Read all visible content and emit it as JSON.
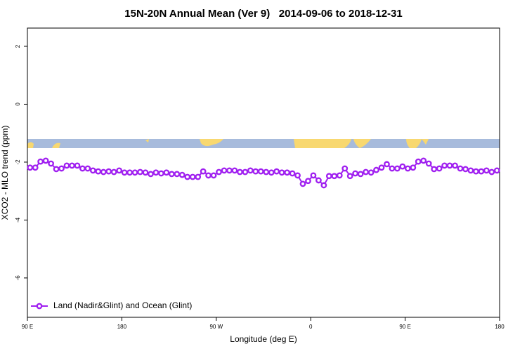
{
  "chart_data": {
    "type": "line",
    "title": "15N-20N Annual Mean (Ver 9)   2014-09-06 to 2018-12-31",
    "xlabel": "Longitude (deg E)",
    "ylabel": "XCO2 - MLO trend (ppm)",
    "x": [
      92.5,
      97.5,
      102.5,
      107.5,
      112.5,
      117.5,
      122.5,
      127.5,
      132.5,
      137.5,
      142.5,
      147.5,
      152.5,
      157.5,
      162.5,
      167.5,
      172.5,
      177.5,
      182.5,
      187.5,
      192.5,
      197.5,
      202.5,
      207.5,
      212.5,
      217.5,
      222.5,
      227.5,
      232.5,
      237.5,
      242.5,
      247.5,
      252.5,
      257.5,
      262.5,
      267.5,
      272.5,
      277.5,
      282.5,
      287.5,
      292.5,
      297.5,
      302.5,
      307.5,
      312.5,
      317.5,
      322.5,
      327.5,
      332.5,
      337.5,
      342.5,
      347.5,
      352.5,
      357.5,
      362.5,
      367.5,
      372.5,
      377.5,
      382.5,
      387.5,
      392.5,
      397.5,
      402.5,
      407.5,
      412.5,
      417.5,
      422.5,
      427.5,
      432.5,
      437.5,
      442.5,
      447.5,
      452.5,
      457.5,
      462.5,
      467.5,
      472.5,
      477.5,
      482.5,
      487.5,
      492.5,
      497.5,
      502.5,
      507.5,
      512.5,
      517.5,
      522.5,
      527.5,
      532.5,
      537.5
    ],
    "series": [
      {
        "name": "Land (Nadir&Glint) and Ocean (Glint)",
        "color": "#a020f0",
        "values": [
          -2.19,
          -2.19,
          -1.98,
          -1.95,
          -2.05,
          -2.24,
          -2.22,
          -2.12,
          -2.12,
          -2.12,
          -2.22,
          -2.22,
          -2.29,
          -2.32,
          -2.34,
          -2.32,
          -2.34,
          -2.29,
          -2.36,
          -2.36,
          -2.36,
          -2.34,
          -2.36,
          -2.41,
          -2.36,
          -2.39,
          -2.36,
          -2.41,
          -2.41,
          -2.44,
          -2.51,
          -2.51,
          -2.51,
          -2.32,
          -2.46,
          -2.46,
          -2.34,
          -2.29,
          -2.29,
          -2.29,
          -2.34,
          -2.34,
          -2.29,
          -2.32,
          -2.32,
          -2.34,
          -2.36,
          -2.32,
          -2.36,
          -2.36,
          -2.39,
          -2.46,
          -2.75,
          -2.65,
          -2.46,
          -2.63,
          -2.8,
          -2.48,
          -2.48,
          -2.46,
          -2.22,
          -2.48,
          -2.39,
          -2.41,
          -2.34,
          -2.36,
          -2.27,
          -2.19,
          -2.07,
          -2.22,
          -2.22,
          -2.15,
          -2.22,
          -2.19,
          -1.98,
          -1.95,
          -2.05,
          -2.24,
          -2.22,
          -2.12,
          -2.12,
          -2.12,
          -2.22,
          -2.24,
          -2.29,
          -2.32,
          -2.32,
          -2.29,
          -2.34,
          -2.29
        ]
      }
    ],
    "xlim": [
      90,
      540
    ],
    "ylim": [
      -7.36,
      2.63
    ],
    "xticks": [
      {
        "value": 90,
        "label": "90 E"
      },
      180,
      {
        "value": 270,
        "label": "90 W"
      },
      {
        "value": 360,
        "label": "0"
      },
      {
        "value": 450,
        "label": "90 E"
      },
      {
        "value": 540,
        "label": "180"
      }
    ],
    "yticks": [
      2,
      0,
      -2,
      -4,
      -6
    ],
    "legend": "bottom-left"
  }
}
